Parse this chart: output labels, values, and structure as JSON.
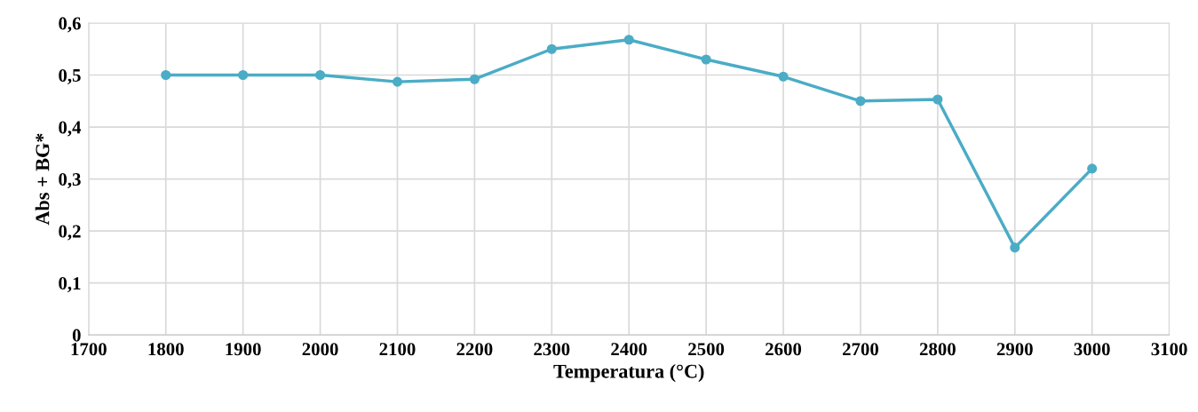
{
  "chart_data": {
    "type": "line",
    "xlabel": "Temperatura (°C)",
    "ylabel": "Abs + BG*",
    "x": [
      1800,
      1900,
      2000,
      2100,
      2200,
      2300,
      2400,
      2500,
      2600,
      2700,
      2800,
      2900,
      3000
    ],
    "series": [
      {
        "color": "#4bacc6",
        "values": [
          0.5,
          0.5,
          0.5,
          0.487,
          0.492,
          0.55,
          0.568,
          0.53,
          0.497,
          0.45,
          0.453,
          0.168,
          0.32
        ]
      }
    ],
    "xlim": [
      1700,
      3100
    ],
    "xticks": [
      1700,
      1800,
      1900,
      2000,
      2100,
      2200,
      2300,
      2400,
      2500,
      2600,
      2700,
      2800,
      2900,
      3000,
      3100
    ],
    "ylim": [
      0,
      0.6
    ],
    "yticks": [
      {
        "value": 0,
        "label": "0"
      },
      {
        "value": 0.1,
        "label": "0,1"
      },
      {
        "value": 0.2,
        "label": "0,2"
      },
      {
        "value": 0.3,
        "label": "0,3"
      },
      {
        "value": 0.4,
        "label": "0,4"
      },
      {
        "value": 0.5,
        "label": "0,5"
      },
      {
        "value": 0.6,
        "label": "0,6"
      }
    ],
    "grid": true,
    "marker": "circle",
    "line_style": "solid"
  }
}
